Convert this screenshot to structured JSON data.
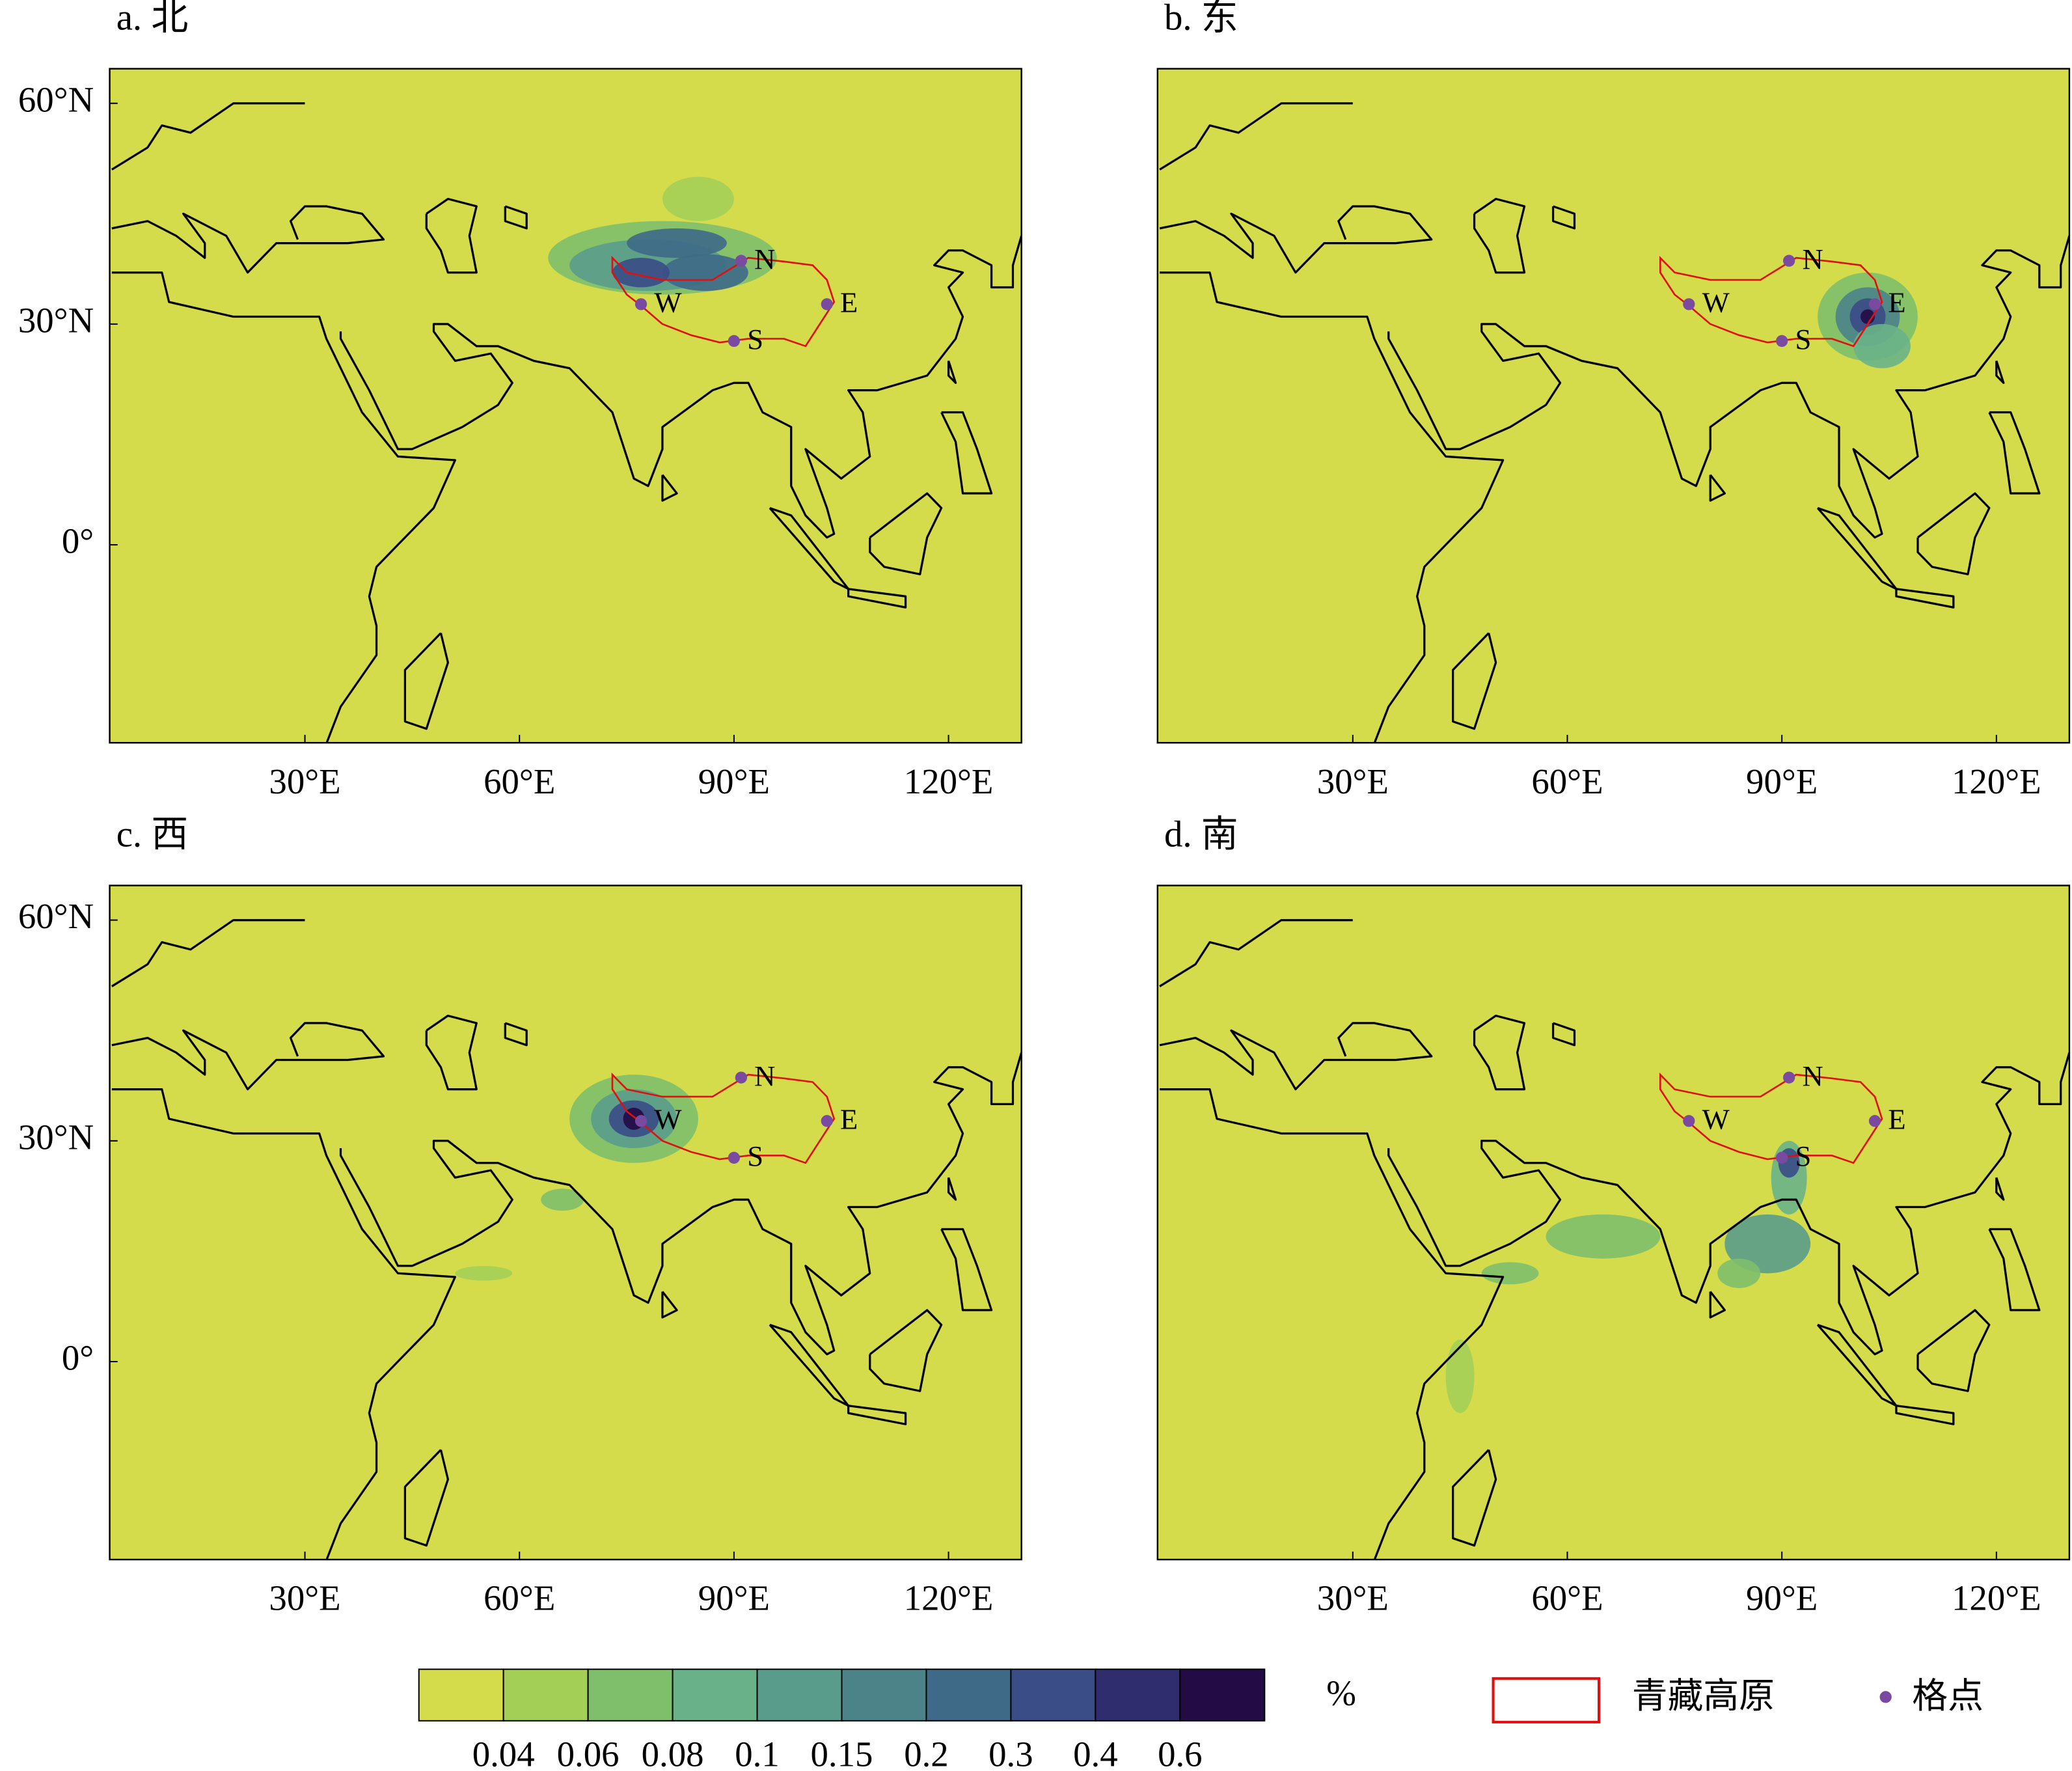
{
  "panels": [
    {
      "title": "a. 北"
    },
    {
      "title": "b. 东"
    },
    {
      "title": "c. 西"
    },
    {
      "title": "d. 南"
    }
  ],
  "x_ticks": [
    {
      "value": 30,
      "label": "30°E"
    },
    {
      "value": 60,
      "label": "60°E"
    },
    {
      "value": 90,
      "label": "90°E"
    },
    {
      "value": 120,
      "label": "120°E"
    }
  ],
  "y_ticks": [
    {
      "value": 60,
      "label": "60°N"
    },
    {
      "value": 30,
      "label": "30°N"
    },
    {
      "value": 0,
      "label": "0°"
    }
  ],
  "points": [
    "N",
    "E",
    "W",
    "S"
  ],
  "colorbar": {
    "colors": [
      "#d4dc4c",
      "#a3cf57",
      "#7fbf6b",
      "#69b289",
      "#5a9c8c",
      "#4b8389",
      "#3e6987",
      "#3a4d86",
      "#302d6e",
      "#230b45"
    ],
    "labels": [
      0.04,
      0.06,
      0.08,
      0.1,
      0.15,
      0.2,
      0.3,
      0.4,
      0.6
    ],
    "unit": "%"
  },
  "legend": {
    "plateau": "青藏高原",
    "point": "格点"
  }
}
